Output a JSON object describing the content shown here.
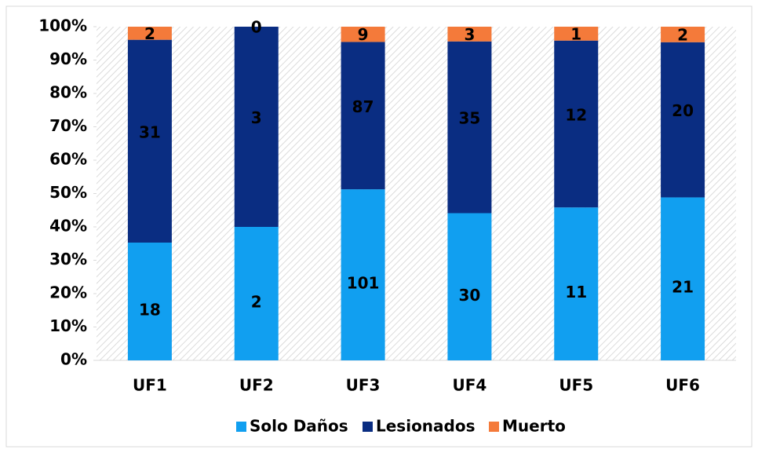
{
  "chart_data": {
    "type": "bar",
    "stacked": "percent",
    "categories": [
      "UF1",
      "UF2",
      "UF3",
      "UF4",
      "UF5",
      "UF6"
    ],
    "series": [
      {
        "name": "Solo Daños",
        "color": "#119ff0",
        "values": [
          18,
          2,
          101,
          30,
          11,
          21
        ]
      },
      {
        "name": "Lesionados",
        "color": "#0a2d82",
        "values": [
          31,
          3,
          87,
          35,
          12,
          20
        ]
      },
      {
        "name": "Muerto",
        "color": "#f47a3a",
        "values": [
          2,
          0,
          9,
          3,
          1,
          2
        ]
      }
    ],
    "ylim": [
      0,
      100
    ],
    "yticks": [
      {
        "value": 0,
        "label": "0%"
      },
      {
        "value": 10,
        "label": "10%"
      },
      {
        "value": 20,
        "label": "20%"
      },
      {
        "value": 30,
        "label": "30%"
      },
      {
        "value": 40,
        "label": "40%"
      },
      {
        "value": 50,
        "label": "50%"
      },
      {
        "value": 60,
        "label": "60%"
      },
      {
        "value": 70,
        "label": "70%"
      },
      {
        "value": 80,
        "label": "80%"
      },
      {
        "value": 90,
        "label": "90%"
      },
      {
        "value": 100,
        "label": "100%"
      }
    ],
    "legend": "bottom"
  }
}
